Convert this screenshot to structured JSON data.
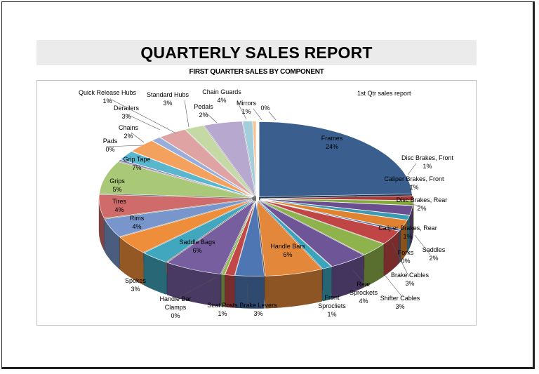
{
  "report": {
    "title": "QUARTERLY SALES REPORT",
    "subtitle": "FIRST QUARTER SALES BY COMPONENT"
  },
  "chart_data": {
    "type": "pie",
    "title": "1st Qtr sales report",
    "style": "3d-exploded",
    "legend": "none",
    "slices": [
      {
        "label": "Frames",
        "value": 24,
        "pct": "24%",
        "color": "#3a5f8f"
      },
      {
        "label": "Disc Brakes, Front",
        "value": 1,
        "pct": "1%",
        "color": "#a83a3a"
      },
      {
        "label": "Caliper Brakes, Front",
        "value": 1,
        "pct": "1%",
        "color": "#85a83e"
      },
      {
        "label": "Disc Brakes, Rear",
        "value": 2,
        "pct": "2%",
        "color": "#6a4e8f"
      },
      {
        "label": "Caliper Brakes, Rear",
        "value": 1,
        "pct": "1%",
        "color": "#3b9ab0"
      },
      {
        "label": "Saddles",
        "value": 2,
        "pct": "2%",
        "color": "#e0822f"
      },
      {
        "label": "Forks",
        "value": 0,
        "pct": "0%",
        "color": "#4a6fa8"
      },
      {
        "label": "Brake Cables",
        "value": 3,
        "pct": "3%",
        "color": "#c04545"
      },
      {
        "label": "Shifter Cables",
        "value": 3,
        "pct": "3%",
        "color": "#8eb34d"
      },
      {
        "label": "Rear Sprockets",
        "value": 4,
        "pct": "4%",
        "color": "#6e5597"
      },
      {
        "label": "Front Sprocliets",
        "value": 1,
        "pct": "1%",
        "color": "#3aa4bd"
      },
      {
        "label": "Handle Bars",
        "value": 6,
        "pct": "6%",
        "color": "#e3883a"
      },
      {
        "label": "Brake Levers",
        "value": 3,
        "pct": "3%",
        "color": "#4d76b3"
      },
      {
        "label": "Seat Posts",
        "value": 1,
        "pct": "1%",
        "color": "#c24848"
      },
      {
        "label": "Handle Bar Clamps",
        "value": 0,
        "pct": "0%",
        "color": "#93b955"
      },
      {
        "label": "Saddle Bags",
        "value": 6,
        "pct": "6%",
        "color": "#765e9f"
      },
      {
        "label": "Spokes",
        "value": 3,
        "pct": "3%",
        "color": "#40a7bf"
      },
      {
        "label": "Rims",
        "value": 4,
        "pct": "4%",
        "color": "#ee8e3b"
      },
      {
        "label": "Tires",
        "value": 4,
        "pct": "4%",
        "color": "#7896cc"
      },
      {
        "label": "Grips",
        "value": 5,
        "pct": "5%",
        "color": "#cf6b6b"
      },
      {
        "label": "Grip Tape",
        "value": 7,
        "pct": "7%",
        "color": "#a9c878"
      },
      {
        "label": "Pads",
        "value": 0,
        "pct": "0%",
        "color": "#8e7bb5"
      },
      {
        "label": "Chains",
        "value": 2,
        "pct": "2%",
        "color": "#59b6cc"
      },
      {
        "label": "Derailers",
        "value": 3,
        "pct": "3%",
        "color": "#f5a15e"
      },
      {
        "label": "Quick Release Hubs",
        "value": 1,
        "pct": "1%",
        "color": "#97aedb"
      },
      {
        "label": "Standard Hubs",
        "value": 3,
        "pct": "3%",
        "color": "#dfa3a3"
      },
      {
        "label": "Pedals",
        "value": 2,
        "pct": "2%",
        "color": "#c4d9a4"
      },
      {
        "label": "Chain Guards",
        "value": 4,
        "pct": "4%",
        "color": "#b7a8cf"
      },
      {
        "label": "Mirrors",
        "value": 1,
        "pct": "1%",
        "color": "#a3cfdc"
      },
      {
        "label": "",
        "value": 0,
        "pct": "0%",
        "color": "#f8c293"
      }
    ]
  }
}
